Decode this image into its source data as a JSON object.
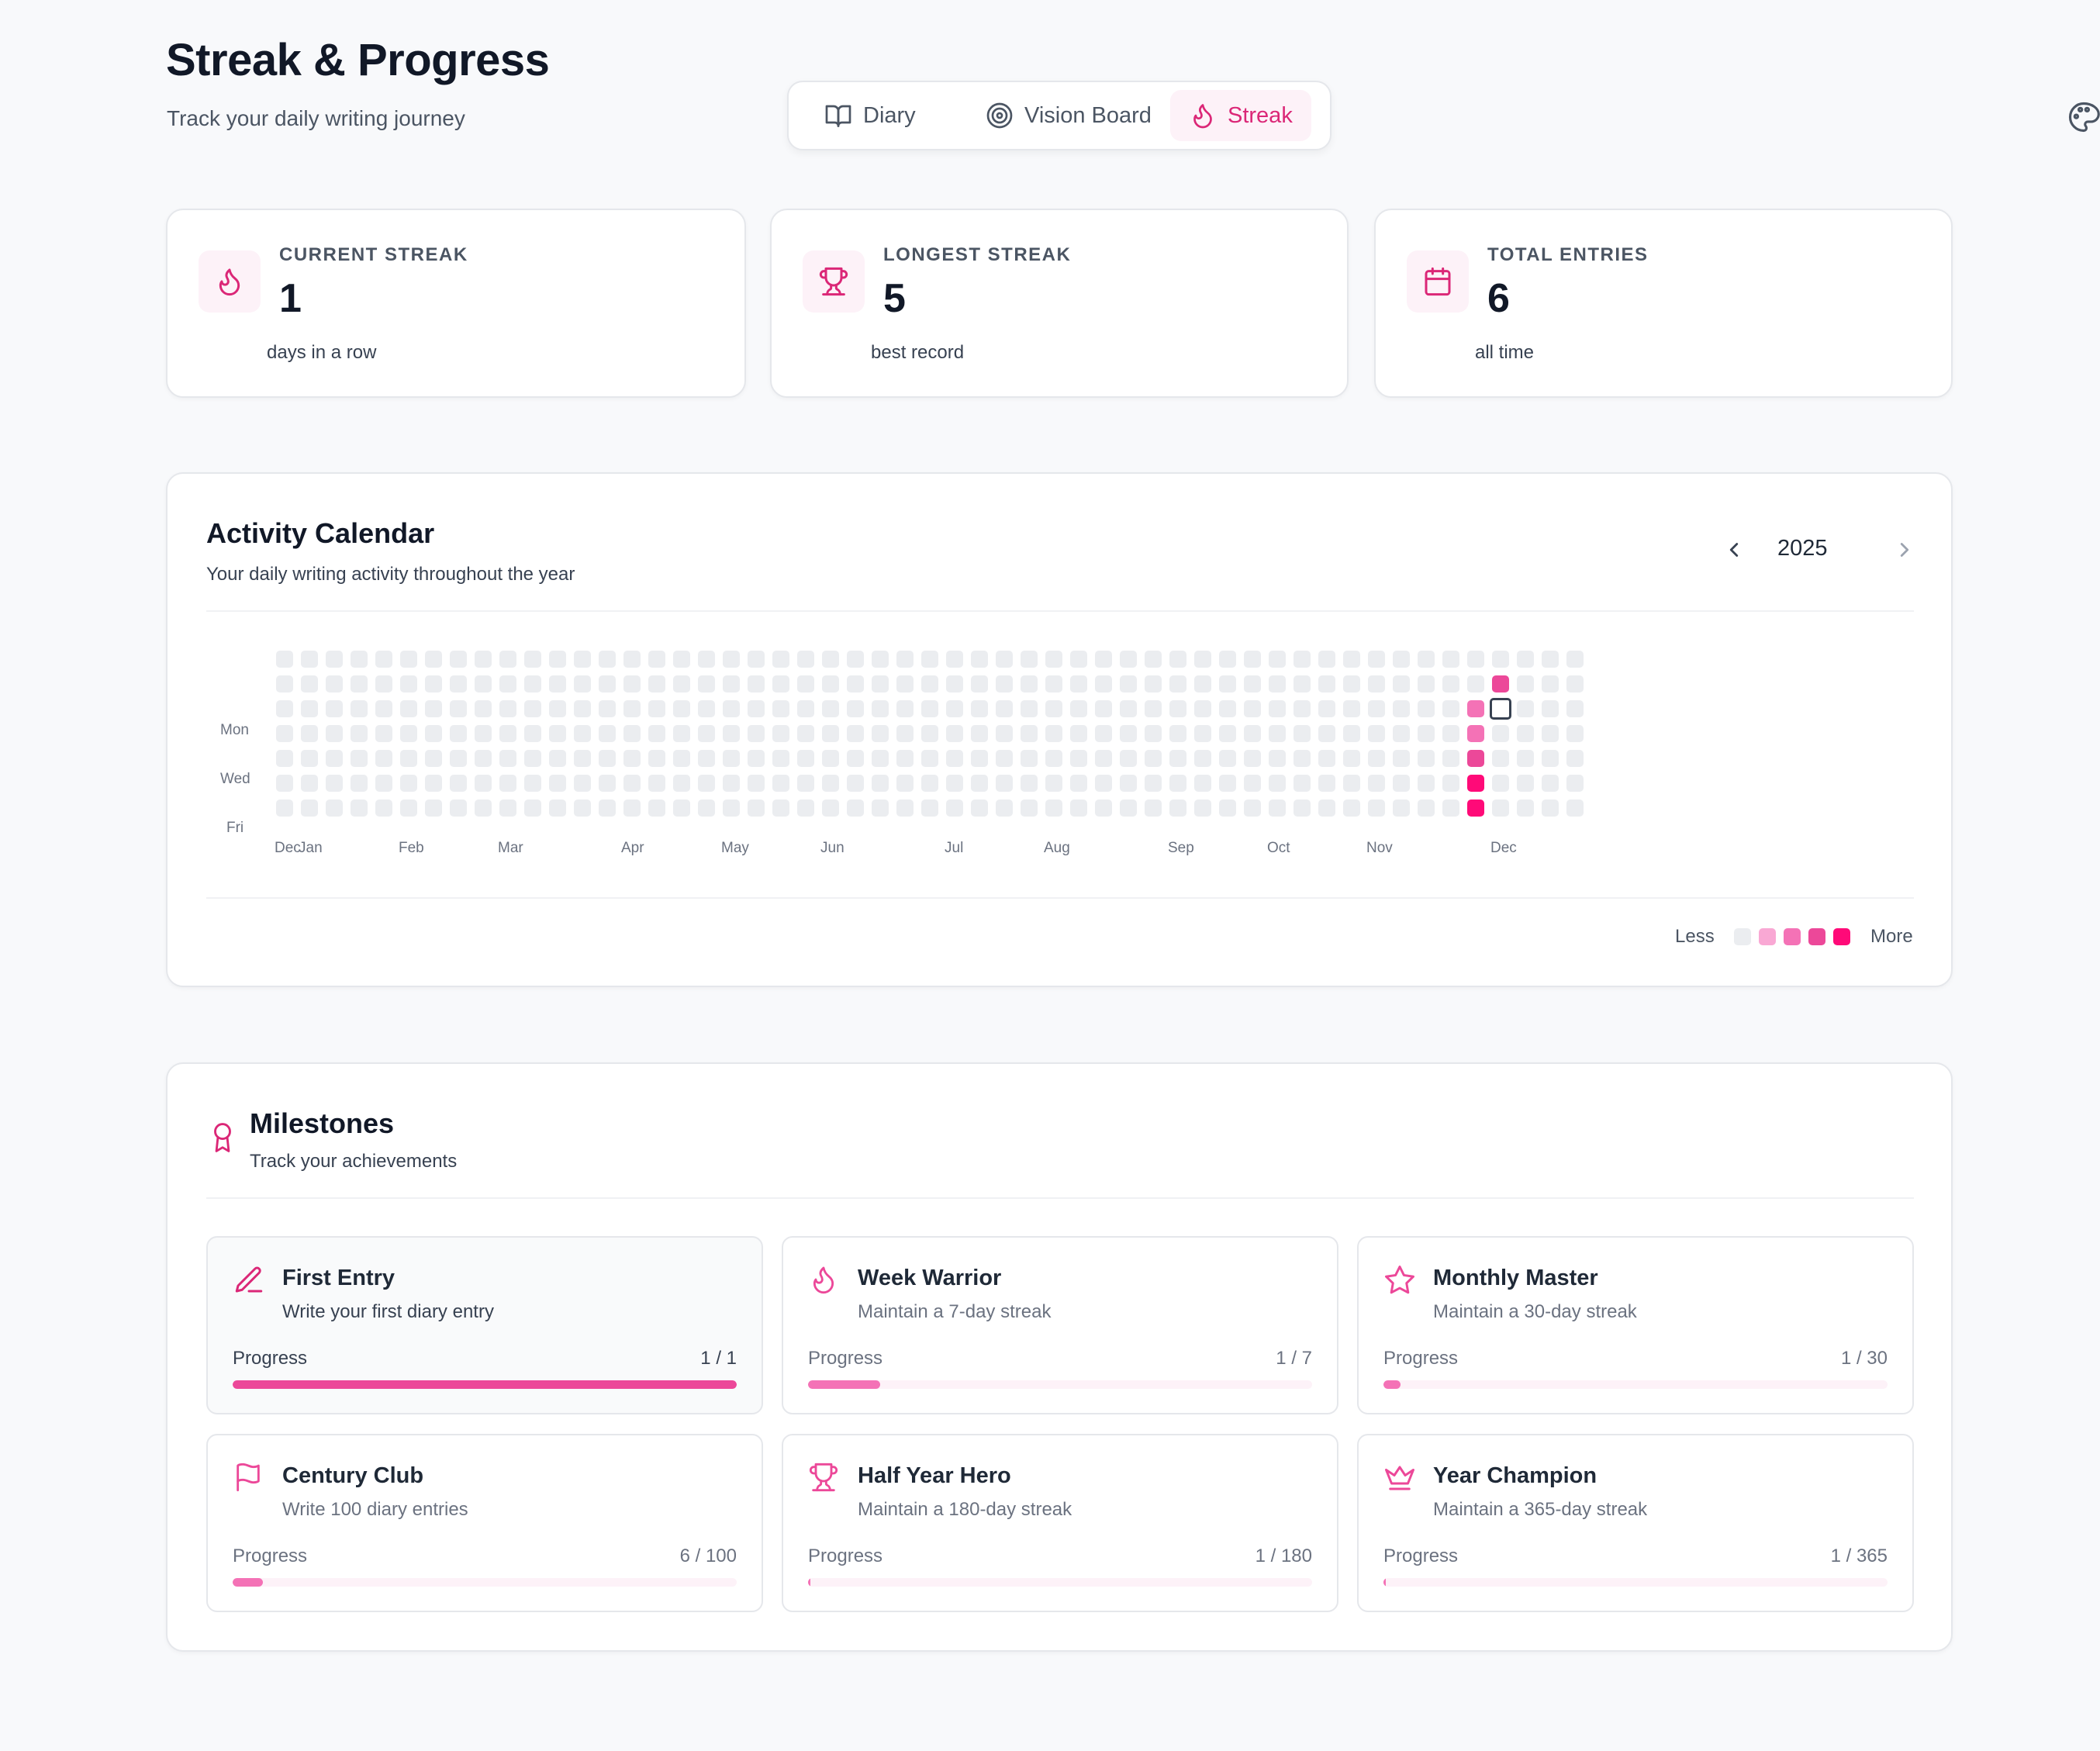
{
  "header": {
    "title": "Streak & Progress",
    "subtitle": "Track your daily writing journey"
  },
  "tabs": [
    {
      "label": "Diary",
      "icon": "book-open-icon",
      "active": false
    },
    {
      "label": "Vision Board",
      "icon": "target-icon",
      "active": false
    },
    {
      "label": "Streak",
      "icon": "flame-icon",
      "active": true
    }
  ],
  "theme_button": {
    "icon": "palette-icon"
  },
  "stats": [
    {
      "label": "CURRENT STREAK",
      "value": "1",
      "note": "days in a row",
      "icon": "flame-icon"
    },
    {
      "label": "LONGEST STREAK",
      "value": "5",
      "note": "best record",
      "icon": "trophy-icon"
    },
    {
      "label": "TOTAL ENTRIES",
      "value": "6",
      "note": "all time",
      "icon": "calendar-icon"
    }
  ],
  "calendar": {
    "title": "Activity Calendar",
    "subtitle": "Your daily writing activity throughout the year",
    "year": "2025",
    "day_labels": [
      "Mon",
      "Wed",
      "Fri"
    ],
    "month_labels": [
      "Dec",
      "Jan",
      "Feb",
      "Mar",
      "Apr",
      "May",
      "Jun",
      "Jul",
      "Aug",
      "Sep",
      "Oct",
      "Nov",
      "Dec"
    ],
    "legend_less": "Less",
    "legend_more": "More",
    "legend_colors": [
      "#ebedf0",
      "#f9a8d4",
      "#f472b6",
      "#ec4899",
      "#ff0a78"
    ],
    "empty_color": "#ebedf0",
    "today_outline": "#374151",
    "active_days": [
      {
        "week": 48,
        "day": 2,
        "level": 2
      },
      {
        "week": 48,
        "day": 3,
        "level": 2
      },
      {
        "week": 48,
        "day": 4,
        "level": 3
      },
      {
        "week": 48,
        "day": 5,
        "level": 4
      },
      {
        "week": 48,
        "day": 6,
        "level": 4
      },
      {
        "week": 49,
        "day": 1,
        "level": 3
      }
    ],
    "today": {
      "week": 49,
      "day": 2
    }
  },
  "milestones": {
    "title": "Milestones",
    "subtitle": "Track your achievements",
    "progress_label": "Progress",
    "items": [
      {
        "title": "First Entry",
        "desc": "Write your first diary entry",
        "current": 1,
        "target": 1,
        "count": "1 / 1",
        "icon": "pencil-icon",
        "done": true
      },
      {
        "title": "Week Warrior",
        "desc": "Maintain a 7-day streak",
        "current": 1,
        "target": 7,
        "count": "1 / 7",
        "icon": "flame-icon",
        "done": false
      },
      {
        "title": "Monthly Master",
        "desc": "Maintain a 30-day streak",
        "current": 1,
        "target": 30,
        "count": "1 / 30",
        "icon": "star-icon",
        "done": false
      },
      {
        "title": "Century Club",
        "desc": "Write 100 diary entries",
        "current": 6,
        "target": 100,
        "count": "6 / 100",
        "icon": "flag-icon",
        "done": false
      },
      {
        "title": "Half Year Hero",
        "desc": "Maintain a 180-day streak",
        "current": 1,
        "target": 180,
        "count": "1 / 180",
        "icon": "trophy-icon",
        "done": false
      },
      {
        "title": "Year Champion",
        "desc": "Maintain a 365-day streak",
        "current": 1,
        "target": 365,
        "count": "1 / 365",
        "icon": "crown-icon",
        "done": false
      }
    ]
  }
}
